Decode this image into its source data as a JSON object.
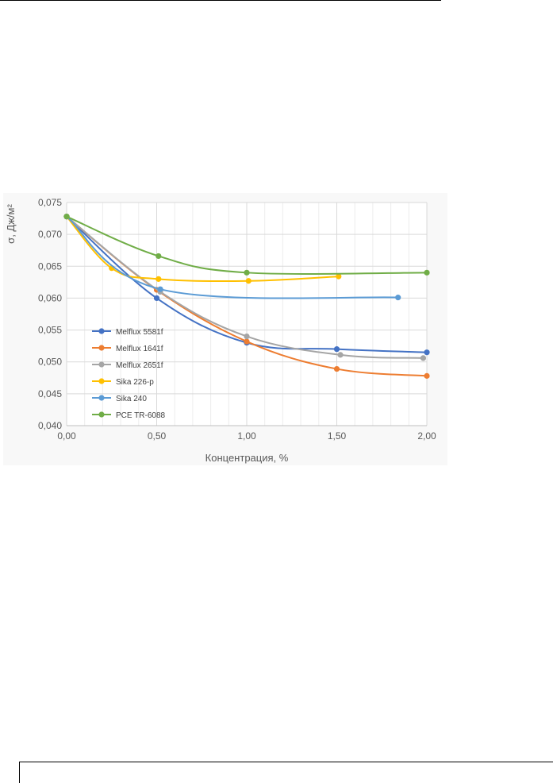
{
  "chart_data": {
    "type": "line",
    "xlabel": "Концентрация, %",
    "ylabel": "σ, Дж/м²",
    "xlim": [
      0,
      2
    ],
    "ylim": [
      0.04,
      0.075
    ],
    "x_ticks": [
      "0,00",
      "0,50",
      "1,00",
      "1,50",
      "2,00"
    ],
    "y_ticks": [
      "0,040",
      "0,045",
      "0,050",
      "0,055",
      "0,060",
      "0,065",
      "0,070",
      "0,075"
    ],
    "grid": true,
    "legend_position": "bottom-left inside",
    "series": [
      {
        "name": "Melflux 5581f",
        "color": "#4472C4",
        "points": [
          [
            0,
            0.0728
          ],
          [
            0.5,
            0.06
          ],
          [
            1.0,
            0.053
          ],
          [
            1.5,
            0.052
          ],
          [
            2.0,
            0.0515
          ]
        ]
      },
      {
        "name": "Melflux 1641f",
        "color": "#ED7D31",
        "points": [
          [
            0,
            0.0728
          ],
          [
            0.5,
            0.0613
          ],
          [
            1.0,
            0.0532
          ],
          [
            1.5,
            0.0489
          ],
          [
            2.0,
            0.0478
          ]
        ]
      },
      {
        "name": "Melflux 2651f",
        "color": "#A5A5A5",
        "points": [
          [
            0,
            0.0728
          ],
          [
            0.52,
            0.061
          ],
          [
            1.0,
            0.054
          ],
          [
            1.52,
            0.0511
          ],
          [
            1.98,
            0.0506
          ]
        ]
      },
      {
        "name": "Sika 226-p",
        "color": "#FFC000",
        "points": [
          [
            0,
            0.0728
          ],
          [
            0.25,
            0.0647
          ],
          [
            0.51,
            0.063
          ],
          [
            1.01,
            0.0627
          ],
          [
            1.51,
            0.0634
          ]
        ]
      },
      {
        "name": "Sika 240",
        "color": "#5B9BD5",
        "points": [
          [
            0,
            0.0728
          ],
          [
            0.52,
            0.0614
          ],
          [
            1.84,
            0.0601
          ]
        ]
      },
      {
        "name": "PCE TR-6088",
        "color": "#70AD47",
        "points": [
          [
            0,
            0.0728
          ],
          [
            0.51,
            0.0666
          ],
          [
            1.0,
            0.064
          ],
          [
            2.0,
            0.064
          ]
        ]
      }
    ]
  }
}
